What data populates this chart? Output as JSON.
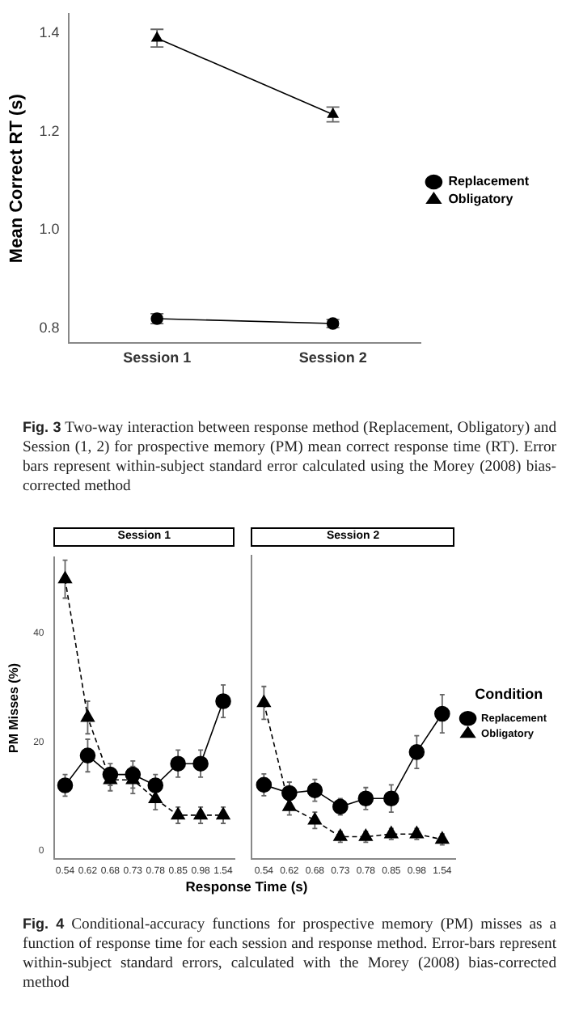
{
  "chart_data": [
    {
      "type": "line",
      "ylabel": "Mean Correct RT (s)",
      "categories": [
        "Session 1",
        "Session 2"
      ],
      "ylim": [
        0.77,
        1.44
      ],
      "yticks": [
        0.8,
        {
          "value": 1,
          "label": "1.0"
        },
        1.2,
        1.4
      ],
      "legend": "right",
      "series": [
        {
          "name": "Replacement",
          "color": "#000000",
          "marker": "circle",
          "line_style": "solid",
          "values": [
            0.82,
            0.81
          ],
          "errors": [
            0.01,
            0.008
          ]
        },
        {
          "name": "Obligatory",
          "color": "#000000",
          "marker": "triangle",
          "line_style": "solid",
          "values": [
            1.39,
            1.235
          ],
          "errors": [
            0.018,
            0.015
          ]
        }
      ],
      "annotations": [
        "Fig. 3",
        "Two-way interaction between response method (Replacement, Obligatory) and Session (1, 2) for prospective memory (PM) mean correct response time (RT). Error bars represent within-subject standard error calculated using the Morey (2008) bias-corrected method"
      ]
    },
    {
      "type": "line",
      "title": "Session 1",
      "ylabel": "PM Misses (%)",
      "xlabel": "Response Time (s)",
      "categories": [
        "0.54",
        "0.62",
        "0.68",
        "0.73",
        "0.78",
        "0.85",
        "0.98",
        "1.54"
      ],
      "ylim": [
        -1.5,
        54
      ],
      "yticks": [
        0,
        20,
        40
      ],
      "series": [
        {
          "color": "#000000",
          "marker": "circle",
          "line_style": "solid",
          "values": [
            12,
            17.5,
            14,
            14,
            12,
            16,
            16,
            27.5
          ],
          "errors": [
            2,
            3,
            2,
            2.5,
            2,
            2.5,
            2.5,
            3
          ]
        },
        {
          "color": "#000000",
          "marker": "triangle",
          "line_style": "dashed",
          "values": [
            50,
            24.5,
            13,
            13,
            9.5,
            6.5,
            6.5,
            6.5
          ],
          "errors": [
            3.5,
            3,
            2,
            2.5,
            2,
            1.5,
            1.5,
            1.5
          ]
        }
      ]
    },
    {
      "type": "line",
      "title": "Session 2",
      "categories": [
        "0.54",
        "0.62",
        "0.68",
        "0.73",
        "0.78",
        "0.85",
        "0.98",
        "1.54"
      ],
      "ylim": [
        -1.5,
        54
      ],
      "yticks": [
        0,
        20,
        40
      ],
      "tick_labels": "x",
      "legend": "right",
      "legend_title": "Condition",
      "series": [
        {
          "name": "Replacement",
          "color": "#000000",
          "marker": "circle",
          "line_style": "solid",
          "values": [
            12,
            10.5,
            11,
            8,
            9.5,
            9.5,
            18,
            25
          ],
          "errors": [
            2,
            2,
            2,
            1.5,
            2,
            2.5,
            3,
            3.5
          ]
        },
        {
          "name": "Obligatory",
          "color": "#000000",
          "marker": "triangle",
          "line_style": "dashed",
          "values": [
            27,
            8,
            5.5,
            2.5,
            2.5,
            3,
            3,
            2
          ],
          "errors": [
            3,
            1.5,
            1.5,
            1,
            1,
            1,
            1,
            1
          ]
        }
      ],
      "annotations": [
        "Fig. 4",
        "Conditional-accuracy functions for prospective memory (PM) misses as a function of response time for each session and response method. Error-bars represent within-subject standard errors, calculated with the Morey (2008) bias-corrected method"
      ]
    }
  ]
}
